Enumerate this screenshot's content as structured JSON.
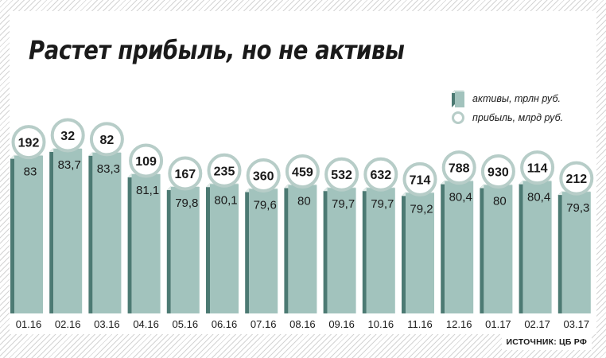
{
  "title": "Растет прибыль, но не активы",
  "source": "ИСТОЧНИК: ЦБ РФ",
  "colors": {
    "bar_front": "#a2c3bd",
    "bar_side": "#4c7a73",
    "bar_top": "#e2ece9",
    "circle_ring": "#b7cdc8",
    "hatch": "#d4d4d4"
  },
  "legend": [
    {
      "marker": "bar",
      "label": "активы, трлн руб."
    },
    {
      "marker": "circle",
      "label": "прибыль, млрд руб."
    }
  ],
  "chart_data": {
    "type": "bar",
    "categories": [
      "01.16",
      "02.16",
      "03.16",
      "04.16",
      "05.16",
      "06.16",
      "07.16",
      "08.16",
      "09.16",
      "10.16",
      "11.16",
      "12.16",
      "01.17",
      "02.17",
      "03.17"
    ],
    "series": [
      {
        "name": "активы, трлн руб.",
        "values": [
          83,
          83.7,
          83.3,
          81.1,
          79.8,
          80.1,
          79.6,
          80,
          79.7,
          79.7,
          79.2,
          80.4,
          80,
          80.4,
          79.3
        ],
        "labels": [
          "83",
          "83,7",
          "83,3",
          "81,1",
          "79,8",
          "80,1",
          "79,6",
          "80",
          "79,7",
          "79,7",
          "79,2",
          "80,4",
          "80",
          "80,4",
          "79,3"
        ]
      },
      {
        "name": "прибыль, млрд руб.",
        "values": [
          192,
          32,
          82,
          109,
          167,
          235,
          360,
          459,
          532,
          632,
          714,
          788,
          930,
          114,
          212
        ],
        "labels": [
          "192",
          "32",
          "82",
          "109",
          "167",
          "235",
          "360",
          "459",
          "532",
          "632",
          "714",
          "788",
          "930",
          "114",
          "212"
        ]
      }
    ],
    "grid": false,
    "legend_position": "top-right"
  }
}
